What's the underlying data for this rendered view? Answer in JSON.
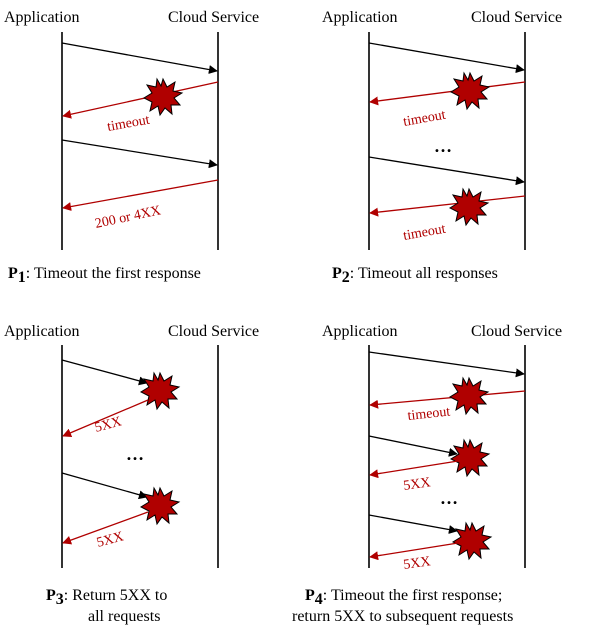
{
  "panels": {
    "p1": {
      "app_label": "Application",
      "cloud_label": "Cloud Service",
      "timeout_label": "timeout",
      "ok_label": "200 or 4XX",
      "caption_key": "P",
      "caption_sub": "1",
      "caption_text": ": Timeout the first response"
    },
    "p2": {
      "app_label": "Application",
      "cloud_label": "Cloud Service",
      "timeout_label_1": "timeout",
      "timeout_label_2": "timeout",
      "ellipsis": "…",
      "caption_key": "P",
      "caption_sub": "2",
      "caption_text": ": Timeout all responses"
    },
    "p3": {
      "app_label": "Application",
      "cloud_label": "Cloud Service",
      "err_label_1": "5XX",
      "err_label_2": "5XX",
      "ellipsis": "…",
      "caption_key": "P",
      "caption_sub": "3",
      "caption_line1": ": Return 5XX to",
      "caption_line2": "all requests"
    },
    "p4": {
      "app_label": "Application",
      "cloud_label": "Cloud Service",
      "timeout_label": "timeout",
      "err_label_1": "5XX",
      "err_label_2": "5XX",
      "ellipsis": "…",
      "caption_key": "P",
      "caption_sub": "4",
      "caption_line1": ": Timeout the first response;",
      "caption_line2": "return 5XX to subsequent requests"
    }
  },
  "colors": {
    "request_arrow": "#000000",
    "response_arrow": "#b00000",
    "burst_fill": "#b00000"
  }
}
